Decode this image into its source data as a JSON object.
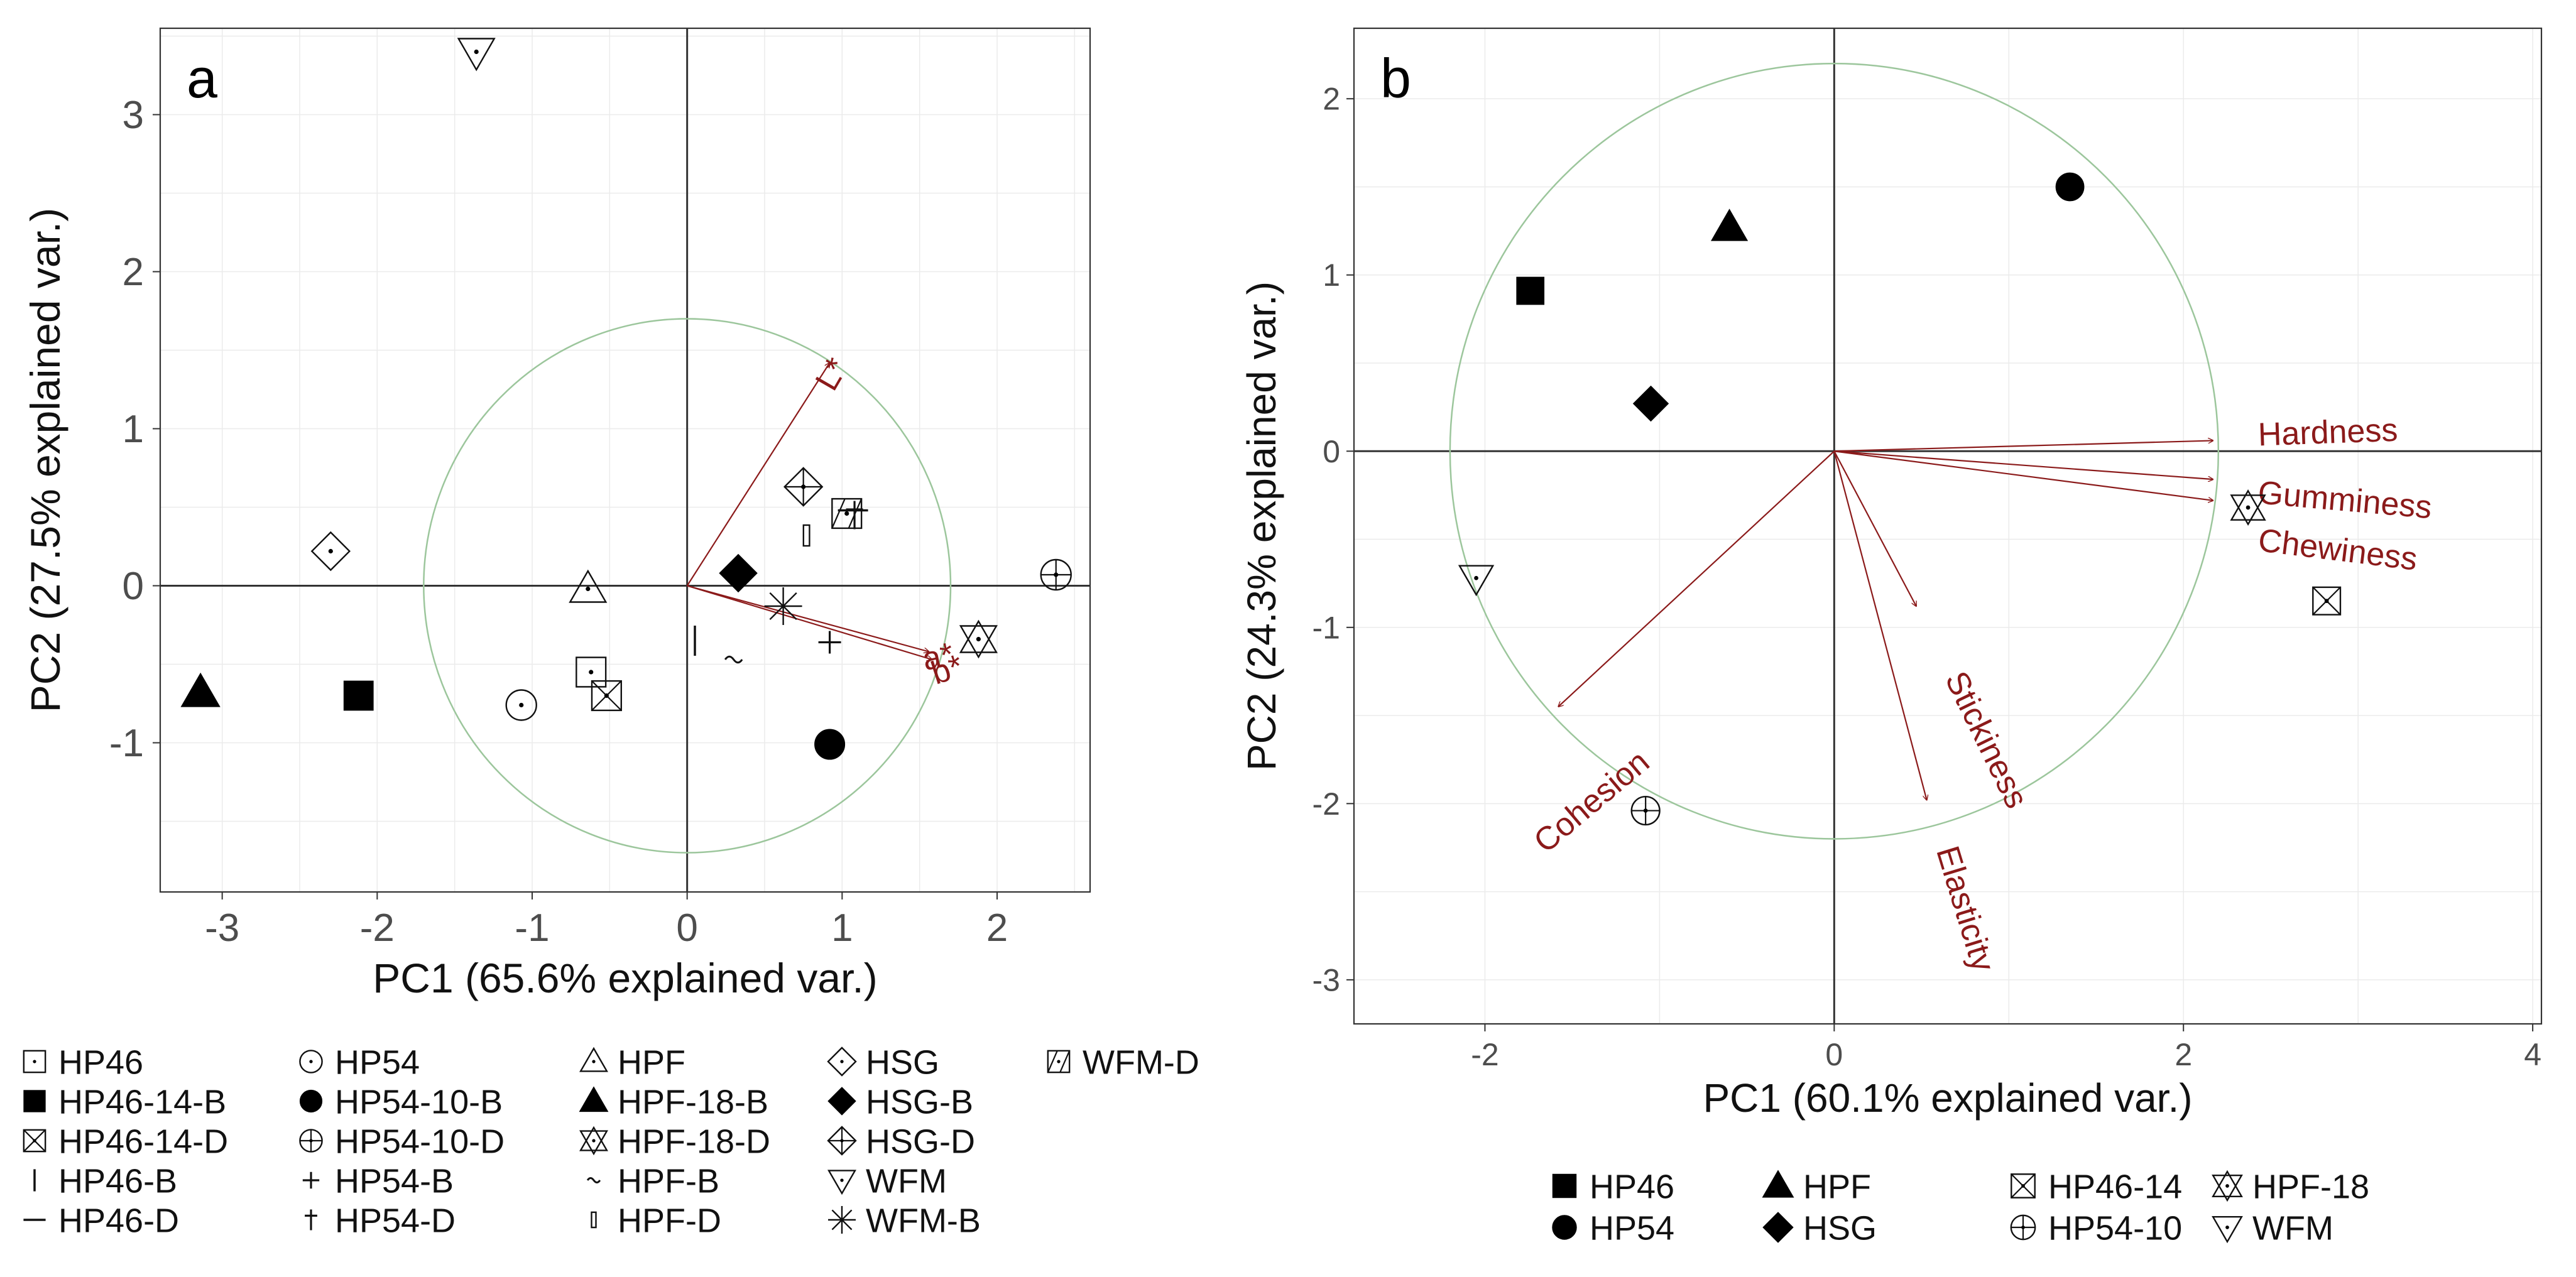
{
  "chart_data": [
    {
      "type": "scatter",
      "panel_label": "a",
      "xlabel": "PC1 (65.6% explained var.)",
      "ylabel": "PC2 (27.5% explained var.)",
      "xlim": [
        -3.4,
        2.6
      ],
      "ylim": [
        -1.95,
        3.55
      ],
      "xticks": [
        -3,
        -2,
        -1,
        0,
        1,
        2
      ],
      "yticks": [
        -1,
        0,
        1,
        2,
        3
      ],
      "grid": true,
      "circle": {
        "cx": 0,
        "cy": 0,
        "r": 1.7
      },
      "points": [
        {
          "name": "HP46",
          "x": -0.62,
          "y": -0.55
        },
        {
          "name": "HP46-14-B",
          "x": -2.12,
          "y": -0.7
        },
        {
          "name": "HP46-14-D",
          "x": -0.52,
          "y": -0.7
        },
        {
          "name": "HP46-B",
          "x": 0.05,
          "y": -0.35
        },
        {
          "name": "HP46-D",
          "x": 1.07,
          "y": 0.48
        },
        {
          "name": "HP54",
          "x": -1.07,
          "y": -0.76
        },
        {
          "name": "HP54-10-B",
          "x": 0.92,
          "y": -1.01
        },
        {
          "name": "HP54-10-D",
          "x": 2.38,
          "y": 0.07
        },
        {
          "name": "HP54-B",
          "x": 0.92,
          "y": -0.36
        },
        {
          "name": "HP54-D",
          "x": 1.08,
          "y": 0.45
        },
        {
          "name": "HPF",
          "x": -0.64,
          "y": -0.02
        },
        {
          "name": "HPF-18-B",
          "x": -3.14,
          "y": -0.68
        },
        {
          "name": "HPF-18-D",
          "x": 1.88,
          "y": -0.34
        },
        {
          "name": "HPF-B",
          "x": 0.3,
          "y": -0.47
        },
        {
          "name": "HPF-D",
          "x": 0.77,
          "y": 0.32
        },
        {
          "name": "HSG",
          "x": -2.3,
          "y": 0.22
        },
        {
          "name": "HSG-B",
          "x": 0.33,
          "y": 0.08
        },
        {
          "name": "HSG-D",
          "x": 0.75,
          "y": 0.63
        },
        {
          "name": "WFM",
          "x": -1.36,
          "y": 3.4
        },
        {
          "name": "WFM-B",
          "x": 0.62,
          "y": -0.13
        },
        {
          "name": "WFM-D",
          "x": 1.03,
          "y": 0.46
        }
      ],
      "loadings": [
        {
          "label": "L*",
          "x": 0.92,
          "y": 1.42
        },
        {
          "label": "a*",
          "x": 1.56,
          "y": -0.42
        },
        {
          "label": "b*",
          "x": 1.58,
          "y": -0.47
        }
      ],
      "legend": {
        "position": "bottom",
        "entries": [
          "HP46",
          "HP46-14-B",
          "HP46-14-D",
          "HP46-B",
          "HP46-D",
          "HP54",
          "HP54-10-B",
          "HP54-10-D",
          "HP54-B",
          "HP54-D",
          "HPF",
          "HPF-18-B",
          "HPF-18-D",
          "HPF-B",
          "HPF-D",
          "HSG",
          "HSG-B",
          "HSG-D",
          "WFM",
          "WFM-B",
          "WFM-D"
        ]
      }
    },
    {
      "type": "scatter",
      "panel_label": "b",
      "xlabel": "PC1 (60.1% explained var.)",
      "ylabel": "PC2 (24.3% explained var.)",
      "xlim": [
        -2.75,
        4.05
      ],
      "ylim": [
        -3.25,
        2.4
      ],
      "xticks": [
        -2,
        0,
        2,
        4
      ],
      "yticks": [
        -3,
        -2,
        -1,
        0,
        1,
        2
      ],
      "grid": true,
      "circle": {
        "cx": 0,
        "cy": 0,
        "r": 2.2
      },
      "points": [
        {
          "name": "HP46",
          "x": -1.74,
          "y": 0.91
        },
        {
          "name": "HP54",
          "x": 1.35,
          "y": 1.5
        },
        {
          "name": "HPF",
          "x": -0.6,
          "y": 1.27
        },
        {
          "name": "HSG",
          "x": -1.05,
          "y": 0.27
        },
        {
          "name": "HP46-14",
          "x": 2.82,
          "y": -0.85
        },
        {
          "name": "HP54-10",
          "x": -1.08,
          "y": -2.04
        },
        {
          "name": "HPF-18",
          "x": 2.37,
          "y": -0.32
        },
        {
          "name": "WFM",
          "x": -2.05,
          "y": -0.72
        }
      ],
      "loadings": [
        {
          "label": "Hardness",
          "x": 2.17,
          "y": 0.06
        },
        {
          "label": "Gumminess",
          "x": 2.17,
          "y": -0.16
        },
        {
          "label": "Chewiness",
          "x": 2.17,
          "y": -0.28
        },
        {
          "label": "Stickiness",
          "x": 0.47,
          "y": -0.88
        },
        {
          "label": "Elasticity",
          "x": 0.53,
          "y": -1.98
        },
        {
          "label": "Cohesion",
          "x": -1.58,
          "y": -1.45
        }
      ],
      "legend": {
        "position": "bottom",
        "entries": [
          "HP46",
          "HP54",
          "HPF",
          "HSG",
          "HP46-14",
          "HP54-10",
          "HPF-18",
          "WFM"
        ]
      }
    }
  ]
}
